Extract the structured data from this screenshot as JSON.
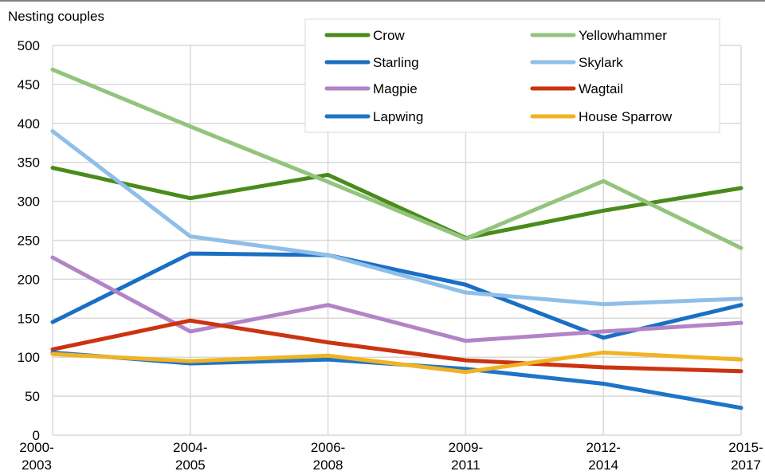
{
  "chart_data": {
    "type": "line",
    "ylabel": "Nesting couples",
    "xlabel": "",
    "ylim": [
      0,
      500
    ],
    "yticks": [
      0,
      50,
      100,
      150,
      200,
      250,
      300,
      350,
      400,
      450,
      500
    ],
    "grid": true,
    "legend_position": "top-right",
    "categories": [
      [
        "2000-",
        "2003"
      ],
      [
        "2004-",
        "2005"
      ],
      [
        "2006-",
        "2008"
      ],
      [
        "2009-",
        "2011"
      ],
      [
        "2012-",
        "2014"
      ],
      [
        "2015-",
        "2017"
      ]
    ],
    "series": [
      {
        "name": "Crow",
        "color": "#4a8b1c",
        "values": [
          343,
          304,
          334,
          253,
          288,
          317
        ]
      },
      {
        "name": "Yellowhammer",
        "color": "#93c47d",
        "values": [
          469,
          396,
          325,
          252,
          326,
          240
        ]
      },
      {
        "name": "Starling",
        "color": "#1a6fc4",
        "values": [
          145,
          233,
          231,
          193,
          125,
          167
        ]
      },
      {
        "name": "Skylark",
        "color": "#8fbfe8",
        "values": [
          390,
          255,
          231,
          183,
          168,
          175
        ]
      },
      {
        "name": "Magpie",
        "color": "#b284c7",
        "values": [
          228,
          133,
          167,
          121,
          133,
          144
        ]
      },
      {
        "name": "Wagtail",
        "color": "#cc3311",
        "values": [
          110,
          147,
          119,
          96,
          87,
          82
        ]
      },
      {
        "name": "Lapwing",
        "color": "#1f74c6",
        "values": [
          106,
          92,
          97,
          85,
          66,
          35
        ]
      },
      {
        "name": "House Sparrow",
        "color": "#f0b323",
        "values": [
          104,
          95,
          102,
          81,
          106,
          97
        ]
      }
    ]
  }
}
